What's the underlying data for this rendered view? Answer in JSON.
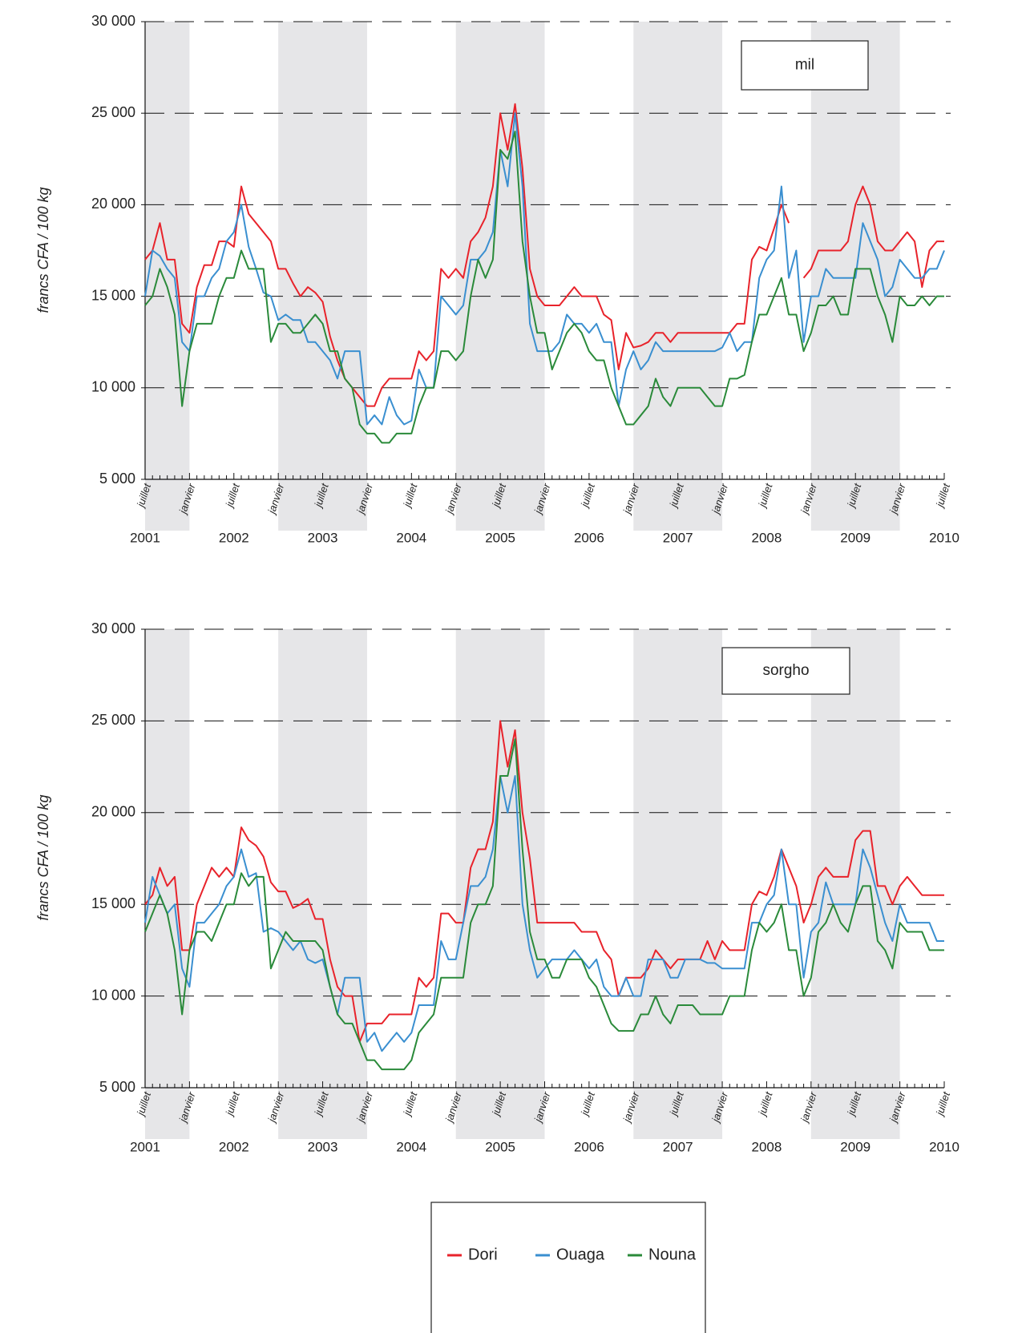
{
  "chart_data": [
    {
      "type": "line",
      "ylabel": "francs CFA / 100 kg",
      "annotation": "mil",
      "x": [
        "juillet",
        null,
        null,
        null,
        null,
        null,
        "janvier",
        null,
        null,
        null,
        null,
        null,
        "juillet",
        null,
        null,
        null,
        null,
        null,
        "janvier",
        null,
        null,
        null,
        null,
        null,
        "juillet",
        null,
        null,
        null,
        null,
        null,
        "janvier",
        null,
        null,
        null,
        null,
        null,
        "juillet",
        null,
        null,
        null,
        null,
        null,
        "janvier",
        null,
        null,
        null,
        null,
        null,
        "juillet",
        null,
        null,
        null,
        null,
        null,
        "janvier",
        null,
        null,
        null,
        null,
        null,
        "juillet",
        null,
        null,
        null,
        null,
        null,
        "janvier",
        null,
        null,
        null,
        null,
        null,
        "juillet",
        null,
        null,
        null,
        null,
        null,
        "janvier",
        null,
        null,
        null,
        null,
        null,
        "juillet",
        null,
        null,
        null,
        null,
        null,
        "janvier",
        null,
        null,
        null,
        null,
        null,
        "juillet",
        null,
        null,
        null,
        null,
        null,
        "janvier",
        null,
        null,
        null,
        null,
        null,
        "juillet"
      ],
      "year_labels": [
        "2001",
        "2002",
        "2003",
        "2004",
        "2005",
        "2006",
        "2007",
        "2008",
        "2009",
        "2010"
      ],
      "ylim": [
        5000,
        30000
      ],
      "yticks": [
        {
          "value": 5000,
          "label": "5 000"
        },
        {
          "value": 10000,
          "label": "10 000"
        },
        {
          "value": 15000,
          "label": "15 000"
        },
        {
          "value": 20000,
          "label": "20 000"
        },
        {
          "value": 25000,
          "label": "25 000"
        },
        {
          "value": 30000,
          "label": "30 000"
        }
      ],
      "grid": true,
      "series": [
        {
          "name": "Dori",
          "color": "#e8232b",
          "values": [
            17000,
            17500,
            19000,
            17000,
            17000,
            13500,
            13000,
            15500,
            16700,
            16700,
            18000,
            18000,
            17700,
            21000,
            19500,
            19000,
            18500,
            18000,
            16500,
            16500,
            15700,
            15000,
            15500,
            15200,
            14700,
            12800,
            11500,
            10500,
            10000,
            9500,
            9000,
            9000,
            10000,
            10500,
            10500,
            10500,
            10500,
            12000,
            11500,
            12000,
            16500,
            16000,
            16500,
            16000,
            18000,
            18500,
            19300,
            21000,
            25000,
            23000,
            25500,
            22000,
            16500,
            15000,
            14500,
            14500,
            14500,
            15000,
            15500,
            15000,
            15000,
            15000,
            14000,
            13700,
            11000,
            13000,
            12200,
            12300,
            12500,
            13000,
            13000,
            12500,
            13000,
            13000,
            13000,
            13000,
            13000,
            13000,
            13000,
            13000,
            13500,
            13500,
            17000,
            17700,
            17500,
            18700,
            20000,
            19000,
            null,
            16000,
            16500,
            17500,
            17500,
            17500,
            17500,
            18000,
            20000,
            21000,
            20000,
            18000,
            17500,
            17500,
            18000,
            18500,
            18000,
            15500,
            17500,
            18000,
            18000
          ]
        },
        {
          "name": "Ouaga",
          "color": "#3a8fd0",
          "values": [
            15000,
            17500,
            17200,
            16500,
            16000,
            12500,
            12000,
            15000,
            15000,
            16000,
            16500,
            18000,
            18500,
            20000,
            17700,
            16500,
            15200,
            15000,
            13700,
            14000,
            13700,
            13700,
            12500,
            12500,
            12000,
            11500,
            10500,
            12000,
            12000,
            12000,
            8000,
            8500,
            8000,
            9500,
            8500,
            8000,
            8200,
            11000,
            10000,
            10000,
            15000,
            14500,
            14000,
            14500,
            17000,
            17000,
            17500,
            18500,
            23000,
            21000,
            25000,
            21000,
            13500,
            12000,
            12000,
            12000,
            12500,
            14000,
            13500,
            13500,
            13000,
            13500,
            12500,
            12500,
            9000,
            11000,
            12000,
            11000,
            11500,
            12500,
            12000,
            12000,
            12000,
            12000,
            12000,
            12000,
            12000,
            12000,
            12200,
            13000,
            12000,
            12500,
            12500,
            16000,
            17000,
            17500,
            21000,
            16000,
            17500,
            12500,
            15000,
            15000,
            16500,
            16000,
            16000,
            16000,
            16000,
            19000,
            18000,
            17000,
            15000,
            15500,
            17000,
            16500,
            16000,
            16000,
            16500,
            16500,
            17500
          ]
        },
        {
          "name": "Nouna",
          "color": "#2a8a3a",
          "values": [
            14500,
            15000,
            16500,
            15500,
            14000,
            9000,
            12000,
            13500,
            13500,
            13500,
            15000,
            16000,
            16000,
            17500,
            16500,
            16500,
            16500,
            12500,
            13500,
            13500,
            13000,
            13000,
            13500,
            14000,
            13500,
            12000,
            12000,
            10500,
            10000,
            8000,
            7500,
            7500,
            7000,
            7000,
            7500,
            7500,
            7500,
            9000,
            10000,
            10000,
            12000,
            12000,
            11500,
            12000,
            15000,
            17000,
            16000,
            17000,
            23000,
            22500,
            24000,
            18000,
            15000,
            13000,
            13000,
            11000,
            12000,
            13000,
            13500,
            13000,
            12000,
            11500,
            11500,
            10000,
            9000,
            8000,
            8000,
            8500,
            9000,
            10500,
            9500,
            9000,
            10000,
            10000,
            10000,
            10000,
            9500,
            9000,
            9000,
            10500,
            10500,
            10700,
            12500,
            14000,
            14000,
            15000,
            16000,
            14000,
            14000,
            12000,
            13000,
            14500,
            14500,
            15000,
            14000,
            14000,
            16500,
            16500,
            16500,
            15000,
            14000,
            12500,
            15000,
            14500,
            14500,
            15000,
            14500,
            15000,
            15000
          ]
        }
      ]
    },
    {
      "type": "line",
      "ylabel": "francs CFA / 100 kg",
      "annotation": "sorgho",
      "x": [
        "juillet",
        null,
        null,
        null,
        null,
        null,
        "janvier",
        null,
        null,
        null,
        null,
        null,
        "juillet",
        null,
        null,
        null,
        null,
        null,
        "janvier",
        null,
        null,
        null,
        null,
        null,
        "juillet",
        null,
        null,
        null,
        null,
        null,
        "janvier",
        null,
        null,
        null,
        null,
        null,
        "juillet",
        null,
        null,
        null,
        null,
        null,
        "janvier",
        null,
        null,
        null,
        null,
        null,
        "juillet",
        null,
        null,
        null,
        null,
        null,
        "janvier",
        null,
        null,
        null,
        null,
        null,
        "juillet",
        null,
        null,
        null,
        null,
        null,
        "janvier",
        null,
        null,
        null,
        null,
        null,
        "juillet",
        null,
        null,
        null,
        null,
        null,
        "janvier",
        null,
        null,
        null,
        null,
        null,
        "juillet",
        null,
        null,
        null,
        null,
        null,
        "janvier",
        null,
        null,
        null,
        null,
        null,
        "juillet",
        null,
        null,
        null,
        null,
        null,
        "janvier",
        null,
        null,
        null,
        null,
        null,
        "juillet"
      ],
      "year_labels": [
        "2001",
        "2002",
        "2003",
        "2004",
        "2005",
        "2006",
        "2007",
        "2008",
        "2009",
        "2010"
      ],
      "ylim": [
        5000,
        30000
      ],
      "yticks": [
        {
          "value": 5000,
          "label": "5 000"
        },
        {
          "value": 10000,
          "label": "10 000"
        },
        {
          "value": 15000,
          "label": "15 000"
        },
        {
          "value": 20000,
          "label": "20 000"
        },
        {
          "value": 25000,
          "label": "25 000"
        },
        {
          "value": 30000,
          "label": "30 000"
        }
      ],
      "grid": true,
      "series": [
        {
          "name": "Dori",
          "color": "#e8232b",
          "values": [
            15000,
            15500,
            17000,
            16000,
            16500,
            12500,
            12500,
            15000,
            16000,
            17000,
            16500,
            17000,
            16500,
            19200,
            18500,
            18200,
            17600,
            16200,
            15700,
            15700,
            14800,
            15000,
            15300,
            14200,
            14200,
            12000,
            10500,
            10000,
            10000,
            7500,
            8500,
            8500,
            8500,
            9000,
            9000,
            9000,
            9000,
            11000,
            10500,
            11000,
            14500,
            14500,
            14000,
            14000,
            17000,
            18000,
            18000,
            19500,
            25000,
            22500,
            24500,
            20000,
            17500,
            14000,
            14000,
            14000,
            14000,
            14000,
            14000,
            13500,
            13500,
            13500,
            12500,
            12000,
            10000,
            11000,
            11000,
            11000,
            11500,
            12500,
            12000,
            11500,
            12000,
            12000,
            12000,
            12000,
            13000,
            12000,
            13000,
            12500,
            12500,
            12500,
            15000,
            15700,
            15500,
            16500,
            18000,
            17000,
            16000,
            14000,
            15000,
            16500,
            17000,
            16500,
            16500,
            16500,
            18500,
            19000,
            19000,
            16000,
            16000,
            15000,
            16000,
            16500,
            16000,
            15500,
            15500,
            15500,
            15500
          ]
        },
        {
          "name": "Ouaga",
          "color": "#3a8fd0",
          "values": [
            14000,
            16500,
            15500,
            14500,
            15000,
            11500,
            10500,
            14000,
            14000,
            14500,
            15000,
            16000,
            16500,
            18000,
            16500,
            16700,
            13500,
            13700,
            13500,
            13000,
            12500,
            13000,
            12000,
            11800,
            12000,
            10500,
            9000,
            11000,
            11000,
            11000,
            7500,
            8000,
            7000,
            7500,
            8000,
            7500,
            8000,
            9500,
            9500,
            9500,
            13000,
            12000,
            12000,
            14000,
            16000,
            16000,
            16500,
            18000,
            22000,
            20000,
            22000,
            15000,
            12500,
            11000,
            11500,
            12000,
            12000,
            12000,
            12500,
            12000,
            11500,
            12000,
            10500,
            10000,
            10000,
            11000,
            10000,
            10000,
            12000,
            12000,
            12000,
            11000,
            11000,
            12000,
            12000,
            12000,
            11800,
            11800,
            11500,
            11500,
            11500,
            11500,
            14000,
            14000,
            15000,
            15500,
            18000,
            15000,
            15000,
            11000,
            13500,
            14000,
            16200,
            15000,
            15000,
            15000,
            15000,
            18000,
            17000,
            15500,
            14000,
            13000,
            15000,
            14000,
            14000,
            14000,
            14000,
            13000,
            13000
          ]
        },
        {
          "name": "Nouna",
          "color": "#2a8a3a",
          "values": [
            13500,
            14500,
            15500,
            14500,
            12500,
            9000,
            12500,
            13500,
            13500,
            13000,
            14000,
            15000,
            15000,
            16700,
            16000,
            16500,
            16500,
            11500,
            12500,
            13500,
            13000,
            13000,
            13000,
            13000,
            12500,
            10500,
            9000,
            8500,
            8500,
            7500,
            6500,
            6500,
            6000,
            6000,
            6000,
            6000,
            6500,
            8000,
            8500,
            9000,
            11000,
            11000,
            11000,
            11000,
            14000,
            15000,
            15000,
            16000,
            22000,
            22000,
            24000,
            18000,
            13500,
            12000,
            12000,
            11000,
            11000,
            12000,
            12000,
            12000,
            11000,
            10500,
            9500,
            8500,
            8100,
            8100,
            8100,
            9000,
            9000,
            10000,
            9000,
            8500,
            9500,
            9500,
            9500,
            9000,
            9000,
            9000,
            9000,
            10000,
            10000,
            10000,
            12500,
            14000,
            13500,
            14000,
            15000,
            12500,
            12500,
            10000,
            11000,
            13500,
            14000,
            15000,
            14000,
            13500,
            15000,
            16000,
            16000,
            13000,
            12500,
            11500,
            14000,
            13500,
            13500,
            13500,
            12500,
            12500,
            12500
          ]
        }
      ]
    }
  ]
}
